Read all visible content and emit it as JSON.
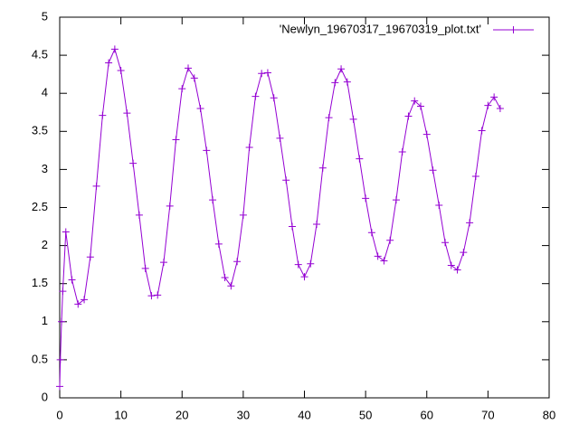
{
  "chart_data": {
    "type": "line",
    "series": [
      {
        "name": "'Newlyn_19670317_19670319_plot.txt'",
        "color": "#9400d3",
        "x": [
          0,
          0.1,
          0.3,
          0.5,
          1,
          2,
          3,
          4,
          5,
          6,
          7,
          8,
          9,
          10,
          11,
          12,
          13,
          14,
          15,
          16,
          17,
          18,
          19,
          20,
          21,
          22,
          23,
          24,
          25,
          26,
          27,
          28,
          29,
          30,
          31,
          32,
          33,
          34,
          35,
          36,
          37,
          38,
          39,
          40,
          41,
          42,
          43,
          44,
          45,
          46,
          47,
          48,
          49,
          50,
          51,
          52,
          53,
          54,
          55,
          56,
          57,
          58,
          59,
          60,
          61,
          62,
          63,
          64,
          65,
          66,
          67,
          68,
          69,
          70,
          71,
          72
        ],
        "values": [
          0.15,
          0.5,
          1.0,
          1.4,
          2.18,
          1.55,
          1.23,
          1.29,
          1.85,
          2.78,
          3.71,
          4.4,
          4.58,
          4.3,
          3.74,
          3.08,
          2.4,
          1.7,
          1.34,
          1.35,
          1.78,
          2.52,
          3.39,
          4.06,
          4.33,
          4.2,
          3.8,
          3.25,
          2.6,
          2.02,
          1.58,
          1.47,
          1.79,
          2.4,
          3.29,
          3.96,
          4.26,
          4.27,
          3.94,
          3.41,
          2.86,
          2.25,
          1.75,
          1.59,
          1.76,
          2.28,
          3.02,
          3.68,
          4.14,
          4.32,
          4.15,
          3.66,
          3.14,
          2.62,
          2.17,
          1.86,
          1.8,
          2.07,
          2.6,
          3.23,
          3.7,
          3.9,
          3.83,
          3.46,
          2.99,
          2.53,
          2.04,
          1.74,
          1.68,
          1.91,
          2.3,
          2.91,
          3.51,
          3.84,
          3.95,
          3.8
        ]
      }
    ],
    "xlim": [
      0,
      80
    ],
    "xticks": [
      0,
      10,
      20,
      30,
      40,
      50,
      60,
      70,
      80
    ],
    "ylim": [
      0,
      5
    ],
    "yticks": [
      0,
      0.5,
      1,
      1.5,
      2,
      2.5,
      3,
      3.5,
      4,
      4.5,
      5
    ],
    "legend": "top-right"
  }
}
